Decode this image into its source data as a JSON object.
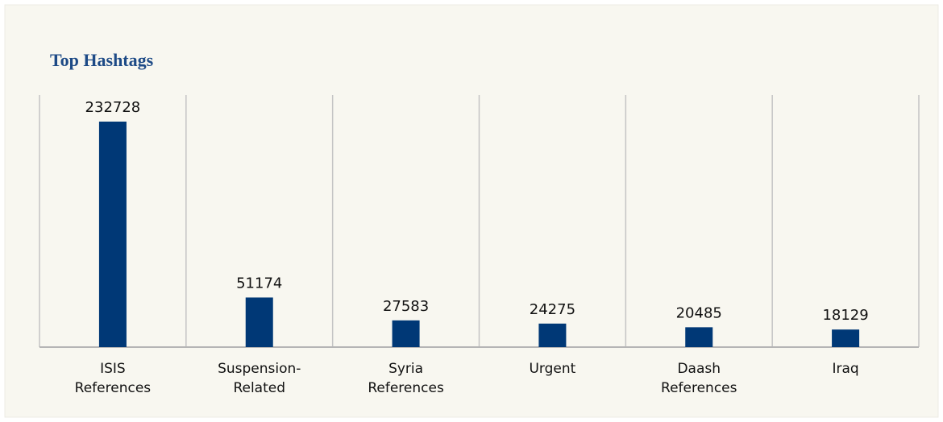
{
  "chart_data": {
    "type": "bar",
    "title": "Top Hashtags",
    "categories": [
      "ISIS References",
      "Suspension-Related",
      "Syria References",
      "Urgent",
      "Daash References",
      "Iraq"
    ],
    "values": [
      232728,
      51174,
      27583,
      24275,
      20485,
      18129
    ],
    "color": "#003876"
  }
}
